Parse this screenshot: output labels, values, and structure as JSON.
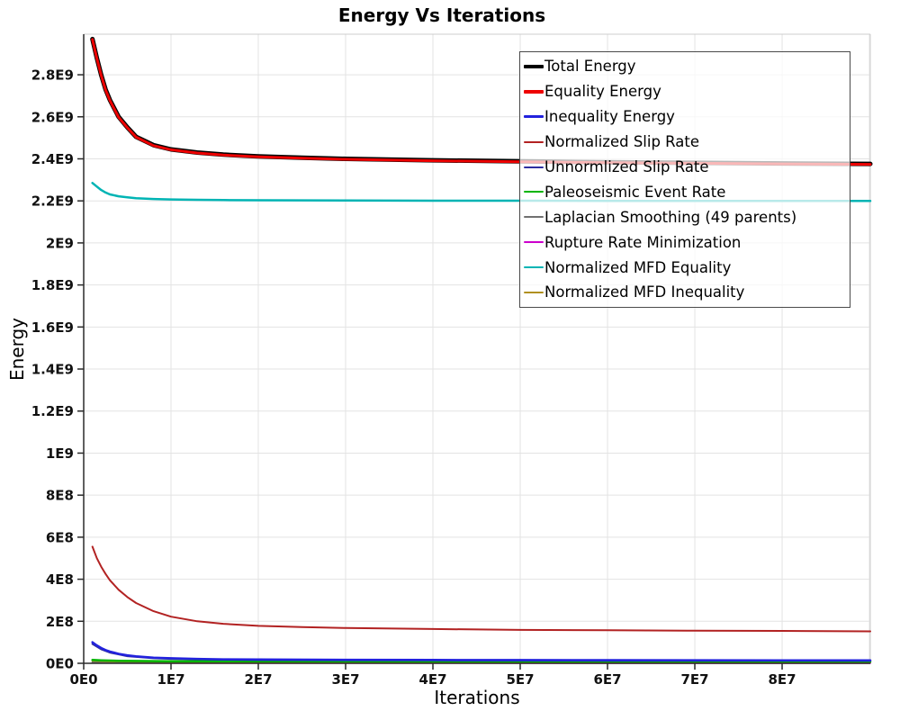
{
  "window": {
    "background": "#ffffff"
  },
  "chart_data": {
    "type": "line",
    "title": "Energy Vs Iterations",
    "xlabel": "Iterations",
    "ylabel": "Energy",
    "xlim": [
      0,
      90100000
    ],
    "ylim": [
      0,
      2993000000
    ],
    "grid": true,
    "grid_color": "#e3e3e3",
    "axis_color": "#2a2a2a",
    "frame_color": "#cccccc",
    "legend_position": "upper-right-inside",
    "legend_border_color": "#4a4a4a",
    "x_ticks": [
      {
        "label": "0E0",
        "value": 0
      },
      {
        "label": "1E7",
        "value": 10000000
      },
      {
        "label": "2E7",
        "value": 20000000
      },
      {
        "label": "3E7",
        "value": 30000000
      },
      {
        "label": "4E7",
        "value": 40000000
      },
      {
        "label": "5E7",
        "value": 50000000
      },
      {
        "label": "6E7",
        "value": 60000000
      },
      {
        "label": "7E7",
        "value": 70000000
      },
      {
        "label": "8E7",
        "value": 80000000
      }
    ],
    "x_gridline_values": [
      10000000,
      20000000,
      30000000,
      40000000,
      50000000,
      60000000,
      70000000,
      80000000,
      90000000
    ],
    "y_ticks": [
      {
        "label": "0E0",
        "value": 0
      },
      {
        "label": "2E8",
        "value": 200000000
      },
      {
        "label": "4E8",
        "value": 400000000
      },
      {
        "label": "6E8",
        "value": 600000000
      },
      {
        "label": "8E8",
        "value": 800000000
      },
      {
        "label": "1E9",
        "value": 1000000000
      },
      {
        "label": "1.2E9",
        "value": 1200000000
      },
      {
        "label": "1.4E9",
        "value": 1400000000
      },
      {
        "label": "1.6E9",
        "value": 1600000000
      },
      {
        "label": "1.8E9",
        "value": 1800000000
      },
      {
        "label": "2E9",
        "value": 2000000000
      },
      {
        "label": "2.2E9",
        "value": 2200000000
      },
      {
        "label": "2.4E9",
        "value": 2400000000
      },
      {
        "label": "2.6E9",
        "value": 2600000000
      },
      {
        "label": "2.8E9",
        "value": 2800000000
      }
    ],
    "series": [
      {
        "name": "Total Energy",
        "color": "#000000",
        "width": 5,
        "legend_swatch_height": 4,
        "z": 1,
        "points": [
          [
            1000000,
            2970000000
          ],
          [
            1500000,
            2880000000
          ],
          [
            2000000,
            2800000000
          ],
          [
            2500000,
            2730000000
          ],
          [
            3000000,
            2680000000
          ],
          [
            4000000,
            2600000000
          ],
          [
            5000000,
            2550000000
          ],
          [
            6000000,
            2505000000
          ],
          [
            8000000,
            2465000000
          ],
          [
            10000000,
            2445000000
          ],
          [
            13000000,
            2430000000
          ],
          [
            16000000,
            2420000000
          ],
          [
            20000000,
            2412000000
          ],
          [
            25000000,
            2405000000
          ],
          [
            30000000,
            2400000000
          ],
          [
            40000000,
            2393000000
          ],
          [
            50000000,
            2388000000
          ],
          [
            60000000,
            2384000000
          ],
          [
            70000000,
            2381000000
          ],
          [
            80000000,
            2378000000
          ],
          [
            90100000,
            2376000000
          ]
        ]
      },
      {
        "name": "Equality Energy",
        "color": "#ee0000",
        "width": 3,
        "legend_swatch_height": 4,
        "z": 2,
        "points": [
          [
            1000000,
            2968000000
          ],
          [
            1500000,
            2878000000
          ],
          [
            2000000,
            2798000000
          ],
          [
            2500000,
            2728000000
          ],
          [
            3000000,
            2678000000
          ],
          [
            4000000,
            2598000000
          ],
          [
            5000000,
            2548000000
          ],
          [
            6000000,
            2503000000
          ],
          [
            8000000,
            2463000000
          ],
          [
            10000000,
            2443000000
          ],
          [
            13000000,
            2428000000
          ],
          [
            16000000,
            2418000000
          ],
          [
            20000000,
            2410000000
          ],
          [
            25000000,
            2403000000
          ],
          [
            30000000,
            2398000000
          ],
          [
            40000000,
            2391000000
          ],
          [
            50000000,
            2386000000
          ],
          [
            60000000,
            2382000000
          ],
          [
            70000000,
            2379000000
          ],
          [
            80000000,
            2376000000
          ],
          [
            90100000,
            2374000000
          ]
        ]
      },
      {
        "name": "Inequality Energy",
        "color": "#2222dd",
        "width": 2.5,
        "legend_swatch_height": 3,
        "z": 9,
        "points": [
          [
            1000000,
            100000000
          ],
          [
            1500000,
            85000000
          ],
          [
            2000000,
            73000000
          ],
          [
            2500000,
            63000000
          ],
          [
            3000000,
            56000000
          ],
          [
            4000000,
            45000000
          ],
          [
            5000000,
            38000000
          ],
          [
            6000000,
            33000000
          ],
          [
            8000000,
            27000000
          ],
          [
            10000000,
            24000000
          ],
          [
            13000000,
            21000000
          ],
          [
            16000000,
            19000000
          ],
          [
            20000000,
            18000000
          ],
          [
            30000000,
            16500000
          ],
          [
            40000000,
            16000000
          ],
          [
            50000000,
            15500000
          ],
          [
            60000000,
            15000000
          ],
          [
            70000000,
            14500000
          ],
          [
            80000000,
            14000000
          ],
          [
            90100000,
            14000000
          ]
        ]
      },
      {
        "name": "Normalized Slip Rate",
        "color": "#b22222",
        "width": 2,
        "legend_swatch_height": 2,
        "z": 3,
        "points": [
          [
            1000000,
            555000000
          ],
          [
            1500000,
            500000000
          ],
          [
            2000000,
            460000000
          ],
          [
            2500000,
            425000000
          ],
          [
            3000000,
            395000000
          ],
          [
            4000000,
            350000000
          ],
          [
            5000000,
            315000000
          ],
          [
            6000000,
            287000000
          ],
          [
            8000000,
            248000000
          ],
          [
            10000000,
            222000000
          ],
          [
            13000000,
            200000000
          ],
          [
            16000000,
            188000000
          ],
          [
            20000000,
            178000000
          ],
          [
            25000000,
            172000000
          ],
          [
            30000000,
            168000000
          ],
          [
            40000000,
            163000000
          ],
          [
            50000000,
            159000000
          ],
          [
            60000000,
            157000000
          ],
          [
            70000000,
            155000000
          ],
          [
            80000000,
            154000000
          ],
          [
            90100000,
            152000000
          ]
        ]
      },
      {
        "name": "Unnormlized Slip Rate",
        "color": "#2e2ea0",
        "width": 2,
        "legend_swatch_height": 2,
        "z": 8,
        "points": [
          [
            1000000,
            92000000
          ],
          [
            2000000,
            67000000
          ],
          [
            3000000,
            51000000
          ],
          [
            5000000,
            34000000
          ],
          [
            8000000,
            24000000
          ],
          [
            10000000,
            21000000
          ],
          [
            20000000,
            15500000
          ],
          [
            40000000,
            13500000
          ],
          [
            60000000,
            12500000
          ],
          [
            90100000,
            12000000
          ]
        ]
      },
      {
        "name": "Paleoseismic Event Rate",
        "color": "#00b400",
        "width": 2.5,
        "legend_swatch_height": 2,
        "z": 7,
        "points": [
          [
            1000000,
            16000000
          ],
          [
            2000000,
            14000000
          ],
          [
            4000000,
            12000000
          ],
          [
            10000000,
            10000000
          ],
          [
            30000000,
            9000000
          ],
          [
            60000000,
            8700000
          ],
          [
            90100000,
            8500000
          ]
        ]
      },
      {
        "name": "Laplacian Smoothing (49 parents)",
        "color": "#707070",
        "width": 2,
        "legend_swatch_height": 2,
        "z": 5,
        "points": [
          [
            1000000,
            6000000
          ],
          [
            3000000,
            4500000
          ],
          [
            10000000,
            3500000
          ],
          [
            40000000,
            3200000
          ],
          [
            90100000,
            3000000
          ]
        ]
      },
      {
        "name": "Rupture Rate Minimization",
        "color": "#cc00cc",
        "width": 2,
        "legend_swatch_height": 2,
        "z": 4,
        "points": [
          [
            1000000,
            2000000
          ],
          [
            10000000,
            1500000
          ],
          [
            90100000,
            1000000
          ]
        ]
      },
      {
        "name": "Normalized MFD Equality",
        "color": "#00b4b4",
        "width": 2.5,
        "legend_swatch_height": 2,
        "z": 10,
        "points": [
          [
            1000000,
            2285000000
          ],
          [
            1500000,
            2268000000
          ],
          [
            2000000,
            2252000000
          ],
          [
            2500000,
            2240000000
          ],
          [
            3000000,
            2231000000
          ],
          [
            4000000,
            2222000000
          ],
          [
            5000000,
            2217000000
          ],
          [
            6000000,
            2213000000
          ],
          [
            8000000,
            2209000000
          ],
          [
            10000000,
            2207000000
          ],
          [
            13000000,
            2205000000
          ],
          [
            16000000,
            2204000000
          ],
          [
            20000000,
            2203000000
          ],
          [
            30000000,
            2202000000
          ],
          [
            40000000,
            2201000000
          ],
          [
            50000000,
            2201000000
          ],
          [
            60000000,
            2200000000
          ],
          [
            70000000,
            2200000000
          ],
          [
            80000000,
            2200000000
          ],
          [
            90100000,
            2200000000
          ]
        ]
      },
      {
        "name": "Normalized MFD Inequality",
        "color": "#b09020",
        "width": 2,
        "legend_swatch_height": 2,
        "z": 6,
        "points": [
          [
            1000000,
            12000000
          ],
          [
            3000000,
            9000000
          ],
          [
            10000000,
            7000000
          ],
          [
            40000000,
            6200000
          ],
          [
            90100000,
            6000000
          ]
        ]
      }
    ]
  }
}
